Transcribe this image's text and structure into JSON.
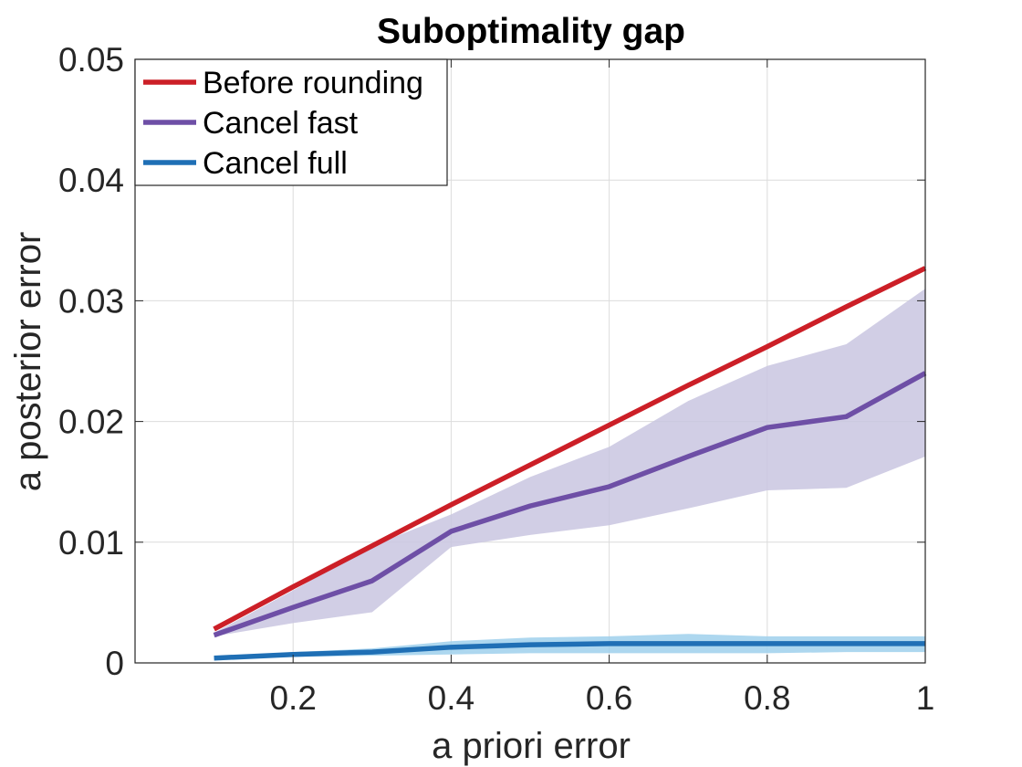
{
  "chart_data": {
    "type": "line",
    "title": "Suboptimality gap",
    "xlabel": "a priori error",
    "ylabel": "a posterior error",
    "xlim": [
      0,
      1
    ],
    "ylim": [
      0,
      0.05
    ],
    "grid": true,
    "legend_location": "top-left",
    "x_ticks": [
      0.2,
      0.4,
      0.6,
      0.8,
      1
    ],
    "x_tick_labels": [
      "0.2",
      "0.4",
      "0.6",
      "0.8",
      "1"
    ],
    "y_ticks": [
      0,
      0.01,
      0.02,
      0.03,
      0.04,
      0.05
    ],
    "y_tick_labels": [
      "0",
      "0.01",
      "0.02",
      "0.03",
      "0.04",
      "0.05"
    ],
    "x": [
      0.1,
      0.2,
      0.3,
      0.4,
      0.5,
      0.6,
      0.7,
      0.8,
      0.9,
      1.0
    ],
    "series": [
      {
        "name": "Before rounding",
        "color": "#cc1f27",
        "values": [
          0.0028,
          0.0063,
          0.0097,
          0.0131,
          0.0164,
          0.0197,
          0.023,
          0.0262,
          0.0295,
          0.0327
        ]
      },
      {
        "name": "Cancel fast",
        "color": "#6e4fa6",
        "band_color": "#c9c6e0",
        "values": [
          0.0023,
          0.0046,
          0.0068,
          0.0109,
          0.013,
          0.0146,
          0.0171,
          0.0195,
          0.0204,
          0.024
        ],
        "lower": [
          0.0022,
          0.0033,
          0.0042,
          0.0096,
          0.0106,
          0.0114,
          0.0128,
          0.0143,
          0.0145,
          0.0171
        ],
        "upper": [
          0.0025,
          0.006,
          0.0097,
          0.0123,
          0.0154,
          0.0179,
          0.0217,
          0.0246,
          0.0264,
          0.031
        ]
      },
      {
        "name": "Cancel full",
        "color": "#1f6fb5",
        "band_color": "#9fd0ec",
        "values": [
          0.0004,
          0.0007,
          0.0009,
          0.0013,
          0.0015,
          0.0016,
          0.0016,
          0.0016,
          0.0016,
          0.0016
        ],
        "lower": [
          0.0003,
          0.0005,
          0.0006,
          0.0007,
          0.0008,
          0.0008,
          0.0008,
          0.0008,
          0.0009,
          0.0009
        ],
        "upper": [
          0.0005,
          0.0009,
          0.0012,
          0.0018,
          0.0021,
          0.0022,
          0.0024,
          0.0022,
          0.0022,
          0.0022
        ]
      }
    ]
  }
}
